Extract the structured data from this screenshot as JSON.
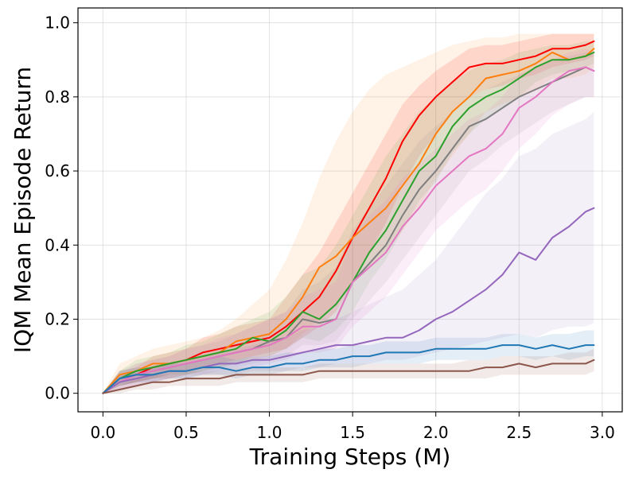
{
  "chart_data": {
    "type": "line",
    "title": "",
    "xlabel": "Training Steps (M)",
    "ylabel": "IQM Mean Episode Return",
    "xlim": [
      -0.15,
      3.12
    ],
    "ylim": [
      -0.05,
      1.04
    ],
    "xticks": [
      0.0,
      0.5,
      1.0,
      1.5,
      2.0,
      2.5,
      3.0
    ],
    "xtick_labels": [
      "0.0",
      "0.5",
      "1.0",
      "1.5",
      "2.0",
      "2.5",
      "3.0"
    ],
    "yticks": [
      0.0,
      0.2,
      0.4,
      0.6,
      0.8,
      1.0
    ],
    "ytick_labels": [
      "0.0",
      "0.2",
      "0.4",
      "0.6",
      "0.8",
      "1.0"
    ],
    "grid": true,
    "legend": "none",
    "series": [
      {
        "name": "red",
        "color": "#ff0000",
        "band_opacity": 0.12,
        "x": [
          0,
          0.1,
          0.2,
          0.3,
          0.4,
          0.5,
          0.6,
          0.7,
          0.8,
          0.9,
          1.0,
          1.1,
          1.2,
          1.3,
          1.4,
          1.5,
          1.6,
          1.7,
          1.8,
          1.9,
          2.0,
          2.1,
          2.2,
          2.3,
          2.4,
          2.5,
          2.6,
          2.7,
          2.8,
          2.9,
          2.95
        ],
        "y": [
          0,
          0.04,
          0.05,
          0.07,
          0.08,
          0.09,
          0.11,
          0.12,
          0.13,
          0.14,
          0.15,
          0.18,
          0.22,
          0.26,
          0.33,
          0.42,
          0.5,
          0.58,
          0.68,
          0.75,
          0.8,
          0.84,
          0.88,
          0.89,
          0.89,
          0.9,
          0.91,
          0.93,
          0.93,
          0.94,
          0.95
        ],
        "lower": [
          0,
          0.02,
          0.03,
          0.04,
          0.05,
          0.06,
          0.07,
          0.08,
          0.09,
          0.1,
          0.11,
          0.12,
          0.15,
          0.18,
          0.22,
          0.3,
          0.38,
          0.46,
          0.56,
          0.64,
          0.7,
          0.76,
          0.8,
          0.82,
          0.83,
          0.85,
          0.86,
          0.88,
          0.89,
          0.9,
          0.91
        ],
        "upper": [
          0,
          0.06,
          0.07,
          0.1,
          0.11,
          0.12,
          0.15,
          0.16,
          0.18,
          0.19,
          0.2,
          0.26,
          0.32,
          0.38,
          0.46,
          0.54,
          0.62,
          0.7,
          0.78,
          0.83,
          0.87,
          0.9,
          0.93,
          0.94,
          0.94,
          0.95,
          0.96,
          0.97,
          0.97,
          0.97,
          0.97
        ]
      },
      {
        "name": "orange",
        "color": "#ff7f0e",
        "band_opacity": 0.1,
        "x": [
          0,
          0.1,
          0.2,
          0.3,
          0.4,
          0.5,
          0.6,
          0.7,
          0.8,
          0.9,
          1.0,
          1.1,
          1.2,
          1.3,
          1.4,
          1.5,
          1.6,
          1.7,
          1.8,
          1.9,
          2.0,
          2.1,
          2.2,
          2.3,
          2.4,
          2.5,
          2.6,
          2.7,
          2.8,
          2.9,
          2.95
        ],
        "y": [
          0,
          0.05,
          0.06,
          0.08,
          0.08,
          0.09,
          0.1,
          0.11,
          0.14,
          0.15,
          0.16,
          0.2,
          0.26,
          0.34,
          0.37,
          0.42,
          0.46,
          0.5,
          0.56,
          0.62,
          0.7,
          0.76,
          0.8,
          0.85,
          0.86,
          0.87,
          0.89,
          0.92,
          0.9,
          0.91,
          0.93
        ],
        "lower": [
          0,
          0.02,
          0.03,
          0.04,
          0.04,
          0.05,
          0.06,
          0.07,
          0.08,
          0.09,
          0.1,
          0.12,
          0.16,
          0.2,
          0.24,
          0.3,
          0.34,
          0.38,
          0.44,
          0.5,
          0.58,
          0.64,
          0.7,
          0.76,
          0.78,
          0.8,
          0.82,
          0.85,
          0.85,
          0.86,
          0.88
        ],
        "upper": [
          0,
          0.08,
          0.1,
          0.12,
          0.13,
          0.14,
          0.15,
          0.17,
          0.2,
          0.24,
          0.28,
          0.36,
          0.46,
          0.58,
          0.68,
          0.76,
          0.82,
          0.86,
          0.88,
          0.9,
          0.92,
          0.94,
          0.95,
          0.96,
          0.96,
          0.97,
          0.97,
          0.97,
          0.97,
          0.97,
          0.97
        ]
      },
      {
        "name": "green",
        "color": "#2ca02c",
        "band_opacity": 0.1,
        "x": [
          0,
          0.1,
          0.2,
          0.3,
          0.4,
          0.5,
          0.6,
          0.7,
          0.8,
          0.9,
          1.0,
          1.1,
          1.2,
          1.3,
          1.4,
          1.5,
          1.6,
          1.7,
          1.8,
          1.9,
          2.0,
          2.1,
          2.2,
          2.3,
          2.4,
          2.5,
          2.6,
          2.7,
          2.8,
          2.9,
          2.95
        ],
        "y": [
          0,
          0.04,
          0.06,
          0.07,
          0.08,
          0.09,
          0.1,
          0.11,
          0.12,
          0.15,
          0.14,
          0.17,
          0.22,
          0.2,
          0.24,
          0.3,
          0.38,
          0.44,
          0.52,
          0.6,
          0.64,
          0.72,
          0.77,
          0.8,
          0.82,
          0.85,
          0.88,
          0.9,
          0.9,
          0.91,
          0.92
        ],
        "lower": [
          0,
          0.02,
          0.03,
          0.04,
          0.05,
          0.05,
          0.06,
          0.07,
          0.08,
          0.1,
          0.1,
          0.12,
          0.15,
          0.14,
          0.17,
          0.22,
          0.3,
          0.36,
          0.44,
          0.52,
          0.57,
          0.65,
          0.7,
          0.74,
          0.77,
          0.8,
          0.84,
          0.86,
          0.87,
          0.88,
          0.89
        ],
        "upper": [
          0,
          0.06,
          0.09,
          0.1,
          0.11,
          0.13,
          0.14,
          0.16,
          0.18,
          0.2,
          0.22,
          0.26,
          0.32,
          0.34,
          0.4,
          0.48,
          0.56,
          0.64,
          0.7,
          0.76,
          0.8,
          0.84,
          0.87,
          0.89,
          0.9,
          0.92,
          0.93,
          0.94,
          0.94,
          0.95,
          0.95
        ]
      },
      {
        "name": "gray",
        "color": "#7f7f7f",
        "band_opacity": 0.1,
        "x": [
          0,
          0.1,
          0.2,
          0.3,
          0.4,
          0.5,
          0.6,
          0.7,
          0.8,
          0.9,
          1.0,
          1.1,
          1.2,
          1.3,
          1.4,
          1.5,
          1.6,
          1.7,
          1.8,
          1.9,
          2.0,
          2.1,
          2.2,
          2.3,
          2.4,
          2.5,
          2.6,
          2.7,
          2.8,
          2.9,
          2.95
        ],
        "y": [
          0,
          0.04,
          0.05,
          0.06,
          0.07,
          0.08,
          0.09,
          0.1,
          0.11,
          0.12,
          0.14,
          0.15,
          0.2,
          0.19,
          0.2,
          0.3,
          0.35,
          0.4,
          0.48,
          0.55,
          0.6,
          0.66,
          0.72,
          0.74,
          0.77,
          0.8,
          0.82,
          0.84,
          0.86,
          0.88,
          0.87
        ],
        "lower": [
          0,
          0.02,
          0.03,
          0.04,
          0.04,
          0.05,
          0.06,
          0.06,
          0.07,
          0.08,
          0.09,
          0.1,
          0.13,
          0.13,
          0.14,
          0.2,
          0.25,
          0.3,
          0.36,
          0.42,
          0.48,
          0.54,
          0.6,
          0.63,
          0.67,
          0.7,
          0.73,
          0.76,
          0.78,
          0.8,
          0.8
        ],
        "upper": [
          0,
          0.06,
          0.08,
          0.09,
          0.1,
          0.12,
          0.13,
          0.14,
          0.16,
          0.18,
          0.2,
          0.22,
          0.28,
          0.3,
          0.34,
          0.44,
          0.5,
          0.56,
          0.62,
          0.68,
          0.72,
          0.76,
          0.8,
          0.82,
          0.84,
          0.86,
          0.88,
          0.9,
          0.91,
          0.92,
          0.92
        ]
      },
      {
        "name": "pink",
        "color": "#e377c2",
        "band_opacity": 0.12,
        "x": [
          0,
          0.1,
          0.2,
          0.3,
          0.4,
          0.5,
          0.6,
          0.7,
          0.8,
          0.9,
          1.0,
          1.1,
          1.2,
          1.3,
          1.4,
          1.5,
          1.6,
          1.7,
          1.8,
          1.9,
          2.0,
          2.1,
          2.2,
          2.3,
          2.4,
          2.5,
          2.6,
          2.7,
          2.8,
          2.9,
          2.95
        ],
        "y": [
          0,
          0.03,
          0.05,
          0.06,
          0.07,
          0.08,
          0.09,
          0.1,
          0.11,
          0.12,
          0.13,
          0.15,
          0.18,
          0.18,
          0.2,
          0.3,
          0.34,
          0.38,
          0.45,
          0.5,
          0.56,
          0.6,
          0.64,
          0.66,
          0.7,
          0.77,
          0.8,
          0.84,
          0.87,
          0.88,
          0.87
        ],
        "lower": [
          0,
          0.01,
          0.02,
          0.03,
          0.04,
          0.05,
          0.05,
          0.06,
          0.07,
          0.07,
          0.08,
          0.09,
          0.11,
          0.11,
          0.12,
          0.18,
          0.22,
          0.26,
          0.32,
          0.38,
          0.44,
          0.48,
          0.52,
          0.55,
          0.6,
          0.66,
          0.7,
          0.75,
          0.78,
          0.8,
          0.8
        ],
        "upper": [
          0,
          0.05,
          0.08,
          0.09,
          0.1,
          0.12,
          0.13,
          0.15,
          0.16,
          0.18,
          0.2,
          0.22,
          0.26,
          0.28,
          0.3,
          0.42,
          0.48,
          0.52,
          0.58,
          0.62,
          0.66,
          0.7,
          0.74,
          0.76,
          0.8,
          0.86,
          0.88,
          0.9,
          0.92,
          0.93,
          0.92
        ]
      },
      {
        "name": "purple",
        "color": "#9467bd",
        "band_opacity": 0.1,
        "x": [
          0,
          0.1,
          0.2,
          0.3,
          0.4,
          0.5,
          0.6,
          0.7,
          0.8,
          0.9,
          1.0,
          1.1,
          1.2,
          1.3,
          1.4,
          1.5,
          1.6,
          1.7,
          1.8,
          1.9,
          2.0,
          2.1,
          2.2,
          2.3,
          2.4,
          2.5,
          2.6,
          2.7,
          2.8,
          2.9,
          2.95
        ],
        "y": [
          0,
          0.03,
          0.04,
          0.05,
          0.06,
          0.06,
          0.07,
          0.08,
          0.08,
          0.09,
          0.09,
          0.1,
          0.11,
          0.12,
          0.13,
          0.13,
          0.14,
          0.15,
          0.15,
          0.17,
          0.2,
          0.22,
          0.25,
          0.28,
          0.32,
          0.38,
          0.36,
          0.42,
          0.45,
          0.49,
          0.5
        ],
        "lower": [
          0,
          0.01,
          0.02,
          0.03,
          0.04,
          0.04,
          0.05,
          0.05,
          0.05,
          0.06,
          0.06,
          0.06,
          0.07,
          0.07,
          0.08,
          0.08,
          0.08,
          0.09,
          0.09,
          0.1,
          0.11,
          0.12,
          0.13,
          0.14,
          0.15,
          0.16,
          0.15,
          0.17,
          0.18,
          0.18,
          0.19
        ],
        "upper": [
          0,
          0.05,
          0.06,
          0.07,
          0.08,
          0.09,
          0.1,
          0.11,
          0.12,
          0.13,
          0.14,
          0.15,
          0.17,
          0.18,
          0.2,
          0.22,
          0.24,
          0.26,
          0.28,
          0.32,
          0.36,
          0.42,
          0.48,
          0.54,
          0.58,
          0.64,
          0.66,
          0.7,
          0.72,
          0.74,
          0.76
        ]
      },
      {
        "name": "blue",
        "color": "#1f77b4",
        "band_opacity": 0.12,
        "x": [
          0,
          0.1,
          0.2,
          0.3,
          0.4,
          0.5,
          0.6,
          0.7,
          0.8,
          0.9,
          1.0,
          1.1,
          1.2,
          1.3,
          1.4,
          1.5,
          1.6,
          1.7,
          1.8,
          1.9,
          2.0,
          2.1,
          2.2,
          2.3,
          2.4,
          2.5,
          2.6,
          2.7,
          2.8,
          2.9,
          2.95
        ],
        "y": [
          0,
          0.04,
          0.05,
          0.05,
          0.06,
          0.06,
          0.07,
          0.07,
          0.06,
          0.07,
          0.07,
          0.08,
          0.08,
          0.09,
          0.09,
          0.1,
          0.1,
          0.11,
          0.11,
          0.11,
          0.12,
          0.12,
          0.12,
          0.12,
          0.13,
          0.13,
          0.12,
          0.13,
          0.12,
          0.13,
          0.13
        ],
        "lower": [
          0,
          0.02,
          0.03,
          0.03,
          0.04,
          0.04,
          0.05,
          0.05,
          0.04,
          0.05,
          0.05,
          0.06,
          0.06,
          0.07,
          0.07,
          0.07,
          0.08,
          0.08,
          0.08,
          0.08,
          0.09,
          0.09,
          0.09,
          0.09,
          0.1,
          0.1,
          0.09,
          0.1,
          0.09,
          0.1,
          0.1
        ],
        "upper": [
          0,
          0.06,
          0.07,
          0.07,
          0.08,
          0.08,
          0.09,
          0.1,
          0.09,
          0.1,
          0.1,
          0.11,
          0.11,
          0.12,
          0.12,
          0.13,
          0.13,
          0.14,
          0.14,
          0.14,
          0.15,
          0.15,
          0.15,
          0.15,
          0.16,
          0.16,
          0.15,
          0.16,
          0.16,
          0.17,
          0.17
        ]
      },
      {
        "name": "brown",
        "color": "#8c564b",
        "band_opacity": 0.12,
        "x": [
          0,
          0.1,
          0.2,
          0.3,
          0.4,
          0.5,
          0.6,
          0.7,
          0.8,
          0.9,
          1.0,
          1.1,
          1.2,
          1.3,
          1.4,
          1.5,
          1.6,
          1.7,
          1.8,
          1.9,
          2.0,
          2.1,
          2.2,
          2.3,
          2.4,
          2.5,
          2.6,
          2.7,
          2.8,
          2.9,
          2.95
        ],
        "y": [
          0,
          0.01,
          0.02,
          0.03,
          0.03,
          0.04,
          0.04,
          0.04,
          0.05,
          0.05,
          0.05,
          0.05,
          0.05,
          0.06,
          0.06,
          0.06,
          0.06,
          0.06,
          0.06,
          0.06,
          0.06,
          0.06,
          0.06,
          0.07,
          0.07,
          0.08,
          0.07,
          0.08,
          0.08,
          0.08,
          0.09
        ],
        "lower": [
          0,
          0.0,
          0.01,
          0.01,
          0.02,
          0.02,
          0.02,
          0.02,
          0.03,
          0.03,
          0.03,
          0.03,
          0.03,
          0.04,
          0.04,
          0.04,
          0.04,
          0.04,
          0.04,
          0.04,
          0.04,
          0.04,
          0.04,
          0.04,
          0.05,
          0.05,
          0.05,
          0.05,
          0.05,
          0.05,
          0.06
        ],
        "upper": [
          0,
          0.02,
          0.04,
          0.05,
          0.05,
          0.06,
          0.06,
          0.06,
          0.07,
          0.07,
          0.07,
          0.07,
          0.07,
          0.08,
          0.08,
          0.08,
          0.08,
          0.08,
          0.08,
          0.08,
          0.08,
          0.08,
          0.09,
          0.09,
          0.1,
          0.1,
          0.1,
          0.1,
          0.11,
          0.11,
          0.12
        ]
      }
    ]
  }
}
